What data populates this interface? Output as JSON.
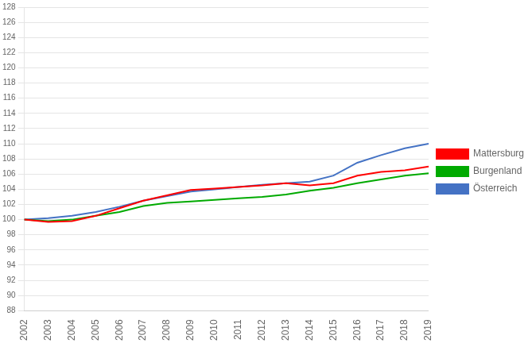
{
  "chart_data": {
    "type": "line",
    "categories": [
      "2002",
      "2003",
      "2004",
      "2005",
      "2006",
      "2007",
      "2008",
      "2009",
      "2010",
      "2011",
      "2012",
      "2013",
      "2014",
      "2015",
      "2016",
      "2017",
      "2018",
      "2019"
    ],
    "series": [
      {
        "name": "Mattersburg",
        "color": "#ff0000",
        "values": [
          100.0,
          99.7,
          99.8,
          100.5,
          101.5,
          102.5,
          103.2,
          103.9,
          104.1,
          104.3,
          104.5,
          104.8,
          104.5,
          104.8,
          105.8,
          106.3,
          106.5,
          107.0
        ]
      },
      {
        "name": "Burgenland",
        "color": "#00aa00",
        "values": [
          100.0,
          99.8,
          100.0,
          100.5,
          101.0,
          101.8,
          102.2,
          102.4,
          102.6,
          102.8,
          103.0,
          103.3,
          103.8,
          104.2,
          104.8,
          105.3,
          105.8,
          106.1
        ]
      },
      {
        "name": "Österreich",
        "color": "#4472c4",
        "values": [
          100.0,
          100.2,
          100.5,
          101.0,
          101.7,
          102.5,
          103.1,
          103.7,
          104.0,
          104.3,
          104.6,
          104.8,
          105.0,
          105.8,
          107.5,
          108.5,
          109.4,
          110.0
        ]
      }
    ],
    "ylim": [
      88,
      128
    ],
    "yticks": [
      88,
      90,
      92,
      94,
      96,
      98,
      100,
      102,
      104,
      106,
      108,
      110,
      112,
      114,
      116,
      118,
      120,
      122,
      124,
      126,
      128
    ],
    "grid": true,
    "legend": "right"
  }
}
